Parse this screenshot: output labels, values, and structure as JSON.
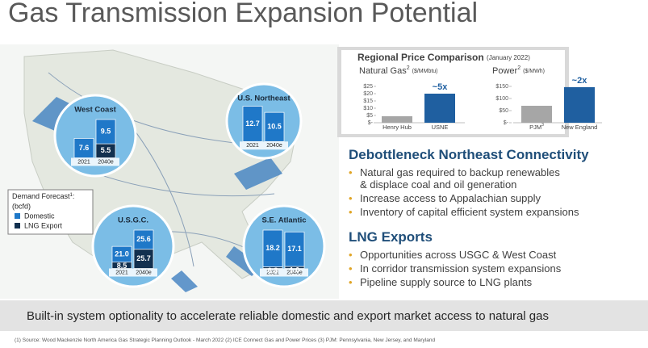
{
  "title": "Gas Transmission Expansion Potential",
  "price_comparison": {
    "title": "Regional Price Comparison",
    "subtitle": "(January 2022)",
    "colors": [
      "#a6a6a6",
      "#1f5fa0"
    ],
    "charts": [
      {
        "label": "Natural Gas",
        "sup": "2",
        "unit": "($/MMbtu)",
        "ylim": [
          0,
          25
        ],
        "yticks": [
          {
            "value": 25,
            "label": "$25"
          },
          {
            "value": 20,
            "label": "$20"
          },
          {
            "value": 15,
            "label": "$15"
          },
          {
            "value": 10,
            "label": "$10"
          },
          {
            "value": 5,
            "label": "$5"
          },
          {
            "value": 0,
            "label": "$-"
          }
        ],
        "categories": [
          "Henry Hub",
          "USNE"
        ],
        "values": [
          4.5,
          20
        ],
        "annotation": "~5x"
      },
      {
        "label": "Power",
        "sup": "2",
        "unit": "($/MWh)",
        "ylim": [
          0,
          150
        ],
        "yticks": [
          {
            "value": 150,
            "label": "$150"
          },
          {
            "value": 100,
            "label": "$100"
          },
          {
            "value": 50,
            "label": "$50"
          },
          {
            "value": 0,
            "label": "$-"
          }
        ],
        "categories": [
          {
            "label": "PJM",
            "sup": "3"
          },
          "New England"
        ],
        "values": [
          70,
          147
        ],
        "annotation": "~2x"
      }
    ]
  },
  "legend": {
    "title": "Demand Forecast",
    "sup": "1",
    "suffix": ":",
    "unit": "(bcfd)",
    "series": [
      {
        "name": "Domestic",
        "color": "#1f78c8"
      },
      {
        "name": "LNG Export",
        "color": "#12304f"
      }
    ]
  },
  "regions": [
    {
      "name": "West Coast",
      "categories": [
        "2021",
        "2040e"
      ],
      "series": [
        {
          "values": [
            7.6,
            9.5
          ]
        },
        {
          "values": [
            null,
            5.5
          ]
        }
      ]
    },
    {
      "name": "U.S. Northeast",
      "categories": [
        "2021",
        "2040e"
      ],
      "series": [
        {
          "values": [
            12.7,
            10.5
          ]
        },
        {
          "values": [
            null,
            null
          ]
        }
      ]
    },
    {
      "name": "U.S.G.C.",
      "categories": [
        "2021",
        "2040e"
      ],
      "series": [
        {
          "values": [
            21,
            25.6
          ],
          "value_labels": [
            "21.0",
            "25.6"
          ]
        },
        {
          "values": [
            8.5,
            25.7
          ]
        }
      ]
    },
    {
      "name": "S.E. Atlantic",
      "categories": [
        "2021",
        "2040e"
      ],
      "series": [
        {
          "values": [
            18.2,
            17.1
          ]
        },
        {
          "values": [
            0.8,
            1
          ],
          "value_labels": [
            "0.8",
            "1.0"
          ]
        }
      ]
    }
  ],
  "sections": [
    {
      "heading": "Debottleneck Northeast Connectivity",
      "bullets": [
        "Natural gas required to backup renewables\n& displace coal and oil generation",
        "Increase access to Appalachian supply",
        "Inventory of capital efficient system expansions"
      ]
    },
    {
      "heading": "LNG Exports",
      "bullets": [
        "Opportunities across USGC & West Coast",
        "In corridor transmission system expansions",
        "Pipeline supply source to LNG plants"
      ]
    }
  ],
  "banner": "Built-in system optionality to accelerate reliable domestic and export market access to natural gas",
  "footnote": "(1) Source: Wood Mackenzie North America Gas Strategic Planning Outlook - March 2022  (2) ICE Connect Gas and Power Prices  (3) PJM: Pennsylvania, New Jersey, and Maryland"
}
